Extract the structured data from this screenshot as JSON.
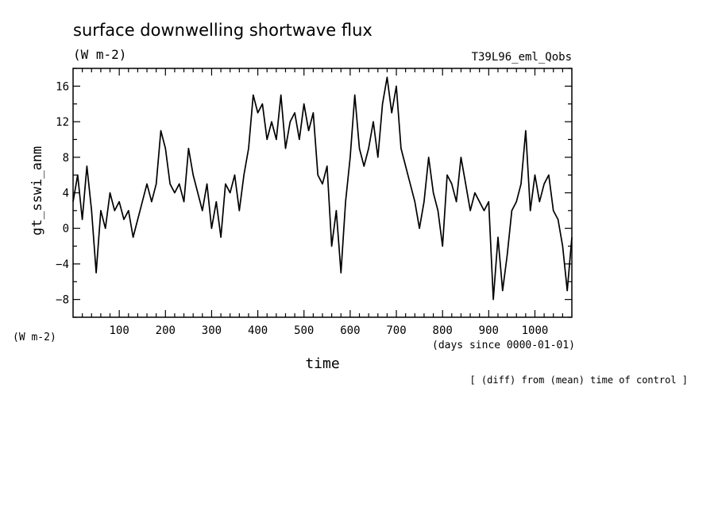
{
  "chart_data": {
    "type": "line",
    "title": "surface downwelling shortwave flux",
    "units": "(W m-2)",
    "run_label": "T39L96_eml_Qobs",
    "ylabel": "gt_sswi_anm",
    "y_units_label": "(W m-2)",
    "xlabel": "time",
    "x_units_label": "(days since 0000-01-01)",
    "note": "[ (diff) from (mean) time of control ]",
    "xlim": [
      0,
      1080
    ],
    "ylim": [
      -10,
      18
    ],
    "x_ticks": [
      100,
      200,
      300,
      400,
      500,
      600,
      700,
      800,
      900,
      1000
    ],
    "y_ticks": [
      16,
      12,
      8,
      4,
      0,
      -4,
      -8
    ],
    "grid": false,
    "series": [
      {
        "x": [
          0,
          10,
          20,
          30,
          40,
          50,
          60,
          70,
          80,
          90,
          100,
          110,
          120,
          130,
          140,
          150,
          160,
          170,
          180,
          190,
          200,
          210,
          220,
          230,
          240,
          250,
          260,
          270,
          280,
          290,
          300,
          310,
          320,
          330,
          340,
          350,
          360,
          370,
          380,
          390,
          400,
          410,
          420,
          430,
          440,
          450,
          460,
          470,
          480,
          490,
          500,
          510,
          520,
          530,
          540,
          550,
          560,
          570,
          580,
          590,
          600,
          610,
          620,
          630,
          640,
          650,
          660,
          670,
          680,
          690,
          700,
          710,
          720,
          730,
          740,
          750,
          760,
          770,
          780,
          790,
          800,
          810,
          820,
          830,
          840,
          850,
          860,
          870,
          880,
          890,
          900,
          910,
          920,
          930,
          940,
          950,
          960,
          970,
          980,
          990,
          1000,
          1010,
          1020,
          1030,
          1040,
          1050,
          1060,
          1070,
          1080
        ],
        "y": [
          3,
          6,
          1,
          7,
          2,
          -5,
          2,
          0,
          4,
          2,
          3,
          1,
          2,
          -1,
          1,
          3,
          5,
          3,
          5,
          11,
          9,
          5,
          4,
          5,
          3,
          9,
          6,
          4,
          2,
          5,
          0,
          3,
          -1,
          5,
          4,
          6,
          2,
          6,
          9,
          15,
          13,
          14,
          10,
          12,
          10,
          15,
          9,
          12,
          13,
          10,
          14,
          11,
          13,
          6,
          5,
          7,
          -2,
          2,
          -5,
          3,
          8,
          15,
          9,
          7,
          9,
          12,
          8,
          14,
          17,
          13,
          16,
          9,
          7,
          5,
          3,
          0,
          3,
          8,
          4,
          2,
          -2,
          6,
          5,
          3,
          8,
          5,
          2,
          4,
          3,
          2,
          3,
          -8,
          -1,
          -7,
          -3,
          2,
          3,
          5,
          11,
          2,
          6,
          3,
          5,
          6,
          2,
          1,
          -2,
          -7,
          -1
        ]
      }
    ]
  }
}
